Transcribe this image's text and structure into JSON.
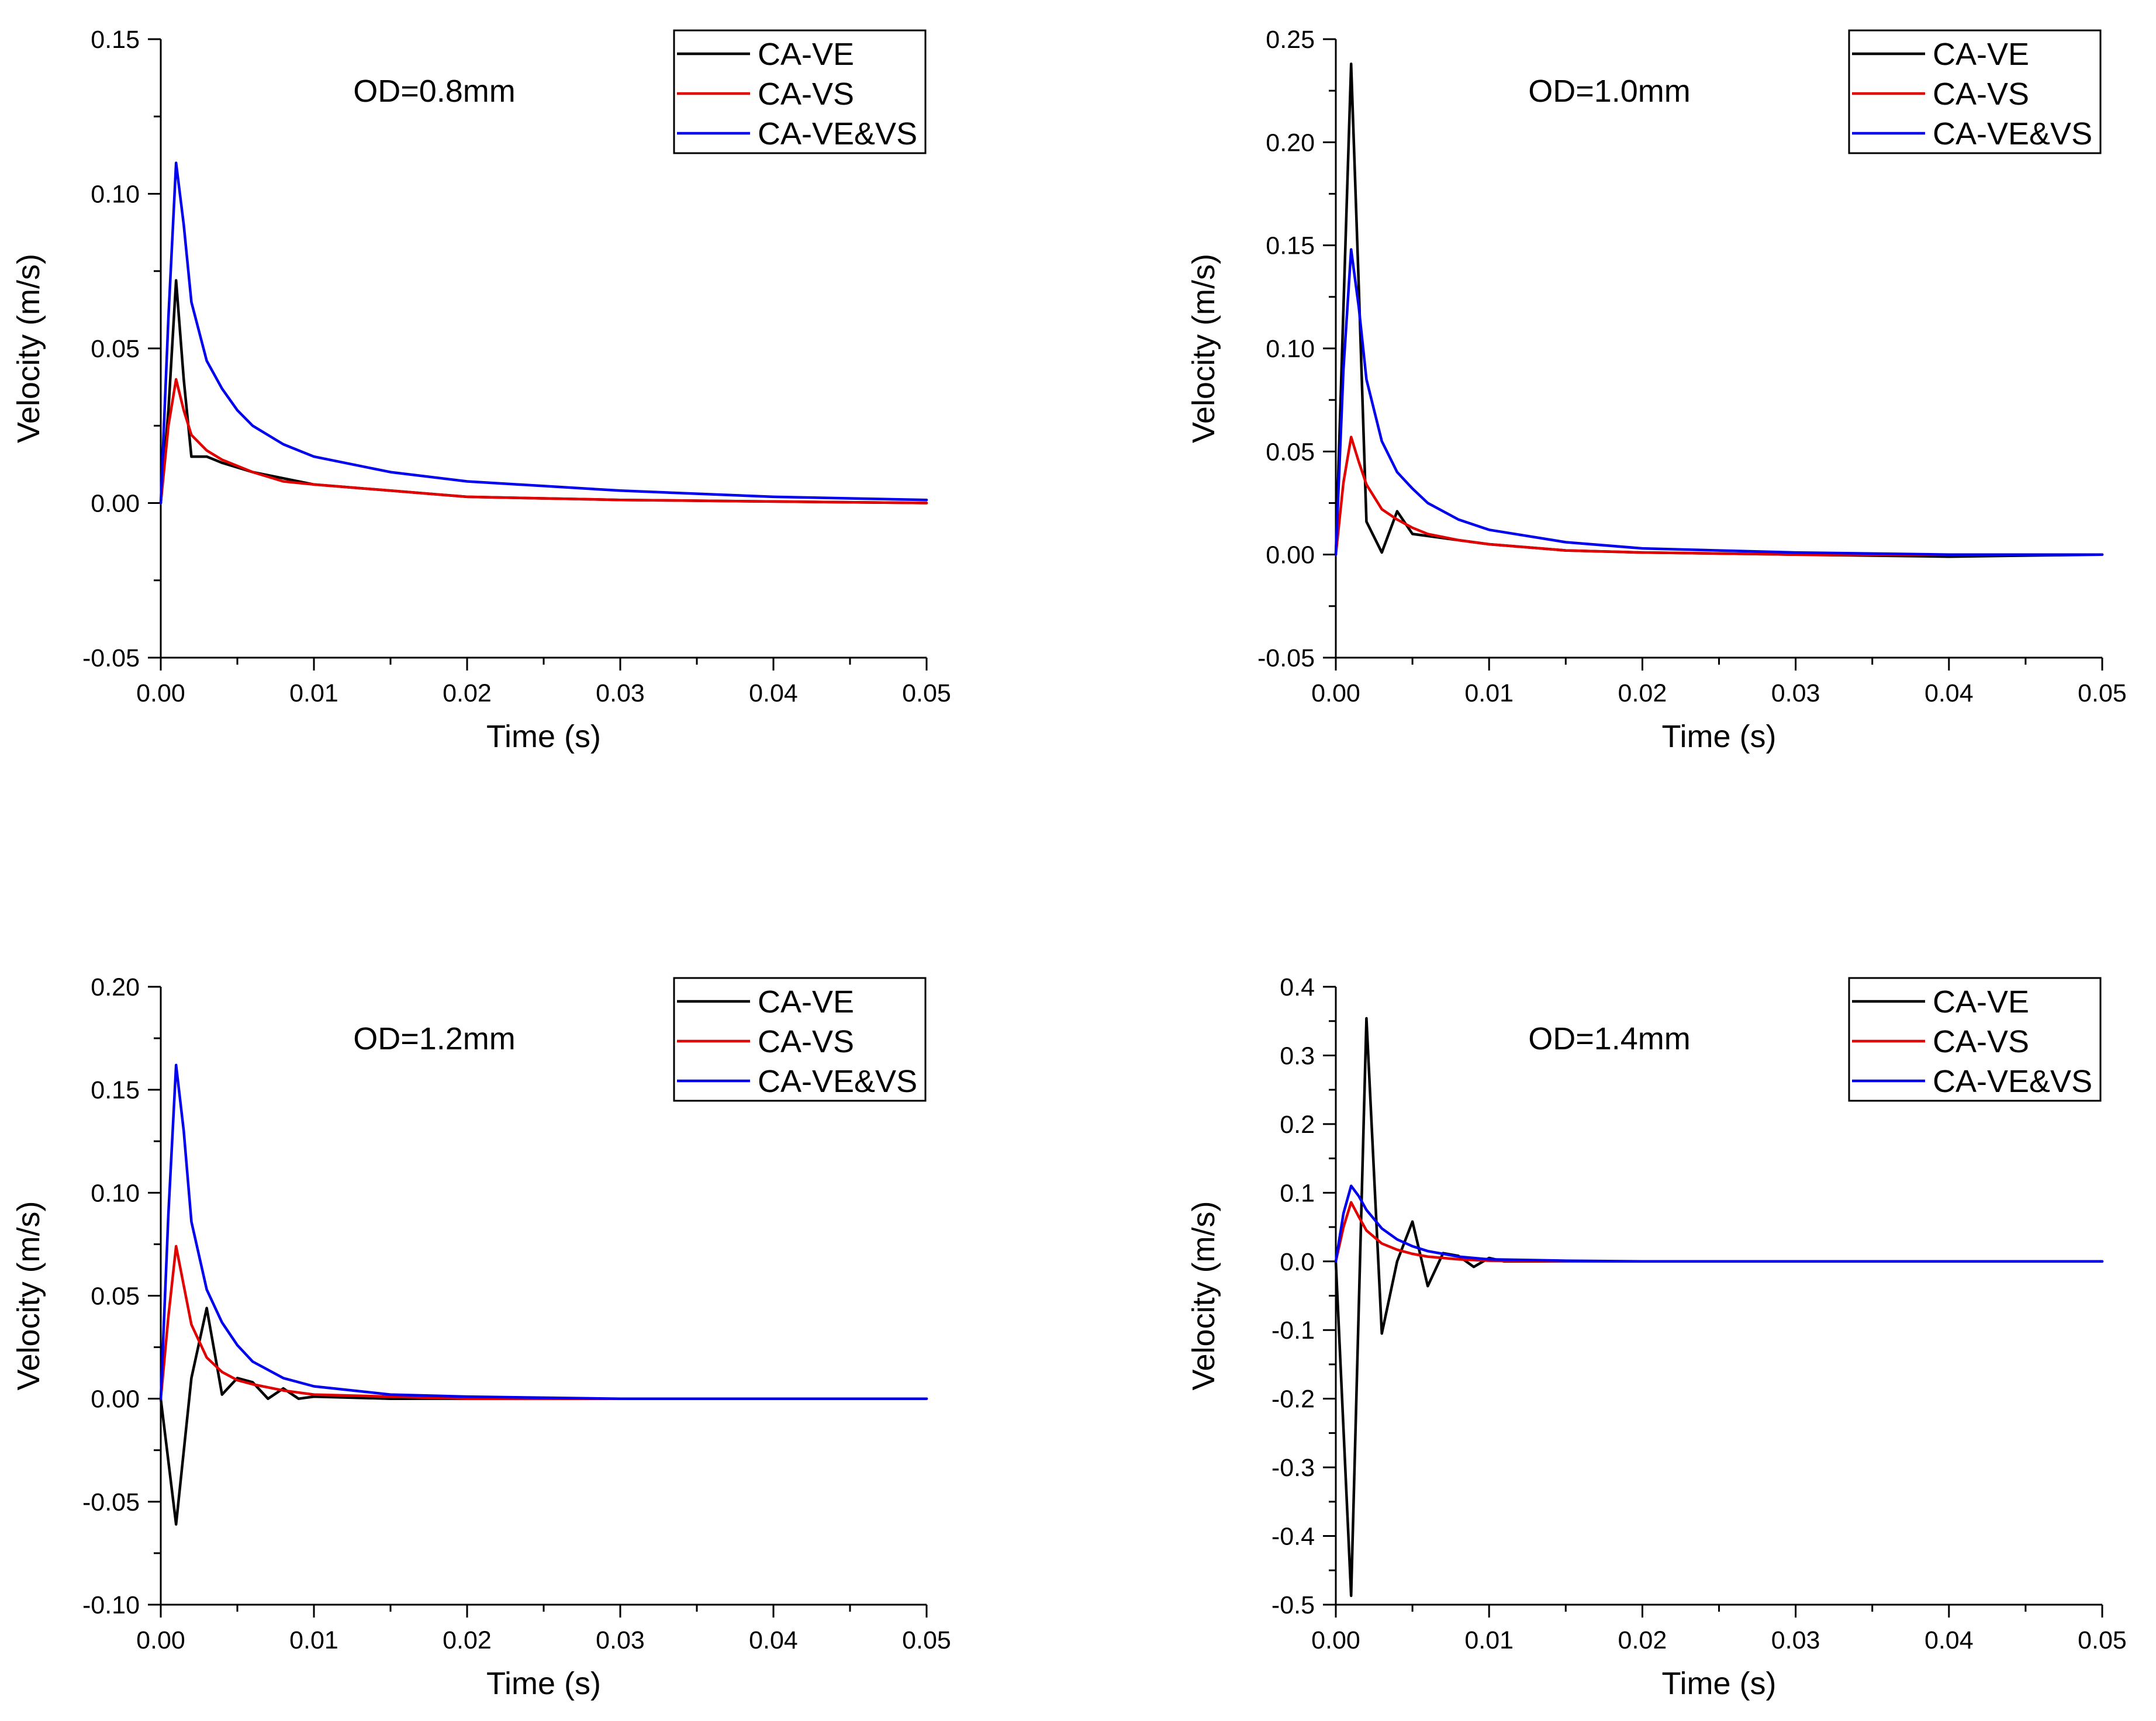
{
  "chart_data": [
    {
      "type": "line",
      "title": "",
      "annotation": "OD=0.8mm",
      "xlabel": "Time (s)",
      "ylabel": "Velocity (m/s)",
      "xlim": [
        0,
        0.05
      ],
      "ylim": [
        -0.05,
        0.15
      ],
      "xticks": [
        0,
        0.01,
        0.02,
        0.03,
        0.04,
        0.05
      ],
      "xtick_labels": [
        "0.00",
        "0.01",
        "0.02",
        "0.03",
        "0.04",
        "0.05"
      ],
      "yticks": [
        -0.05,
        0,
        0.05,
        0.1,
        0.15
      ],
      "ytick_labels": [
        "-0.05",
        "0.00",
        "0.05",
        "0.10",
        "0.15"
      ],
      "legend_position": "top-right",
      "series": [
        {
          "name": "CA-VE",
          "color": "#000000",
          "x": [
            0,
            0.0005,
            0.001,
            0.0015,
            0.002,
            0.003,
            0.004,
            0.006,
            0.008,
            0.01,
            0.015,
            0.02,
            0.03,
            0.04,
            0.05
          ],
          "y": [
            0,
            0.03,
            0.072,
            0.04,
            0.015,
            0.015,
            0.013,
            0.01,
            0.008,
            0.006,
            0.004,
            0.002,
            0.001,
            0.0005,
            0
          ]
        },
        {
          "name": "CA-VS",
          "color": "#e00000",
          "x": [
            0,
            0.0005,
            0.001,
            0.0015,
            0.002,
            0.003,
            0.004,
            0.006,
            0.008,
            0.01,
            0.015,
            0.02,
            0.03,
            0.04,
            0.05
          ],
          "y": [
            0,
            0.025,
            0.04,
            0.03,
            0.022,
            0.017,
            0.014,
            0.01,
            0.007,
            0.006,
            0.004,
            0.002,
            0.001,
            0.0005,
            0
          ]
        },
        {
          "name": "CA-VE&VS",
          "color": "#0000ee",
          "x": [
            0,
            0.0005,
            0.001,
            0.0015,
            0.002,
            0.003,
            0.004,
            0.005,
            0.006,
            0.008,
            0.01,
            0.015,
            0.02,
            0.03,
            0.04,
            0.05
          ],
          "y": [
            0,
            0.06,
            0.11,
            0.09,
            0.065,
            0.046,
            0.037,
            0.03,
            0.025,
            0.019,
            0.015,
            0.01,
            0.007,
            0.004,
            0.002,
            0.001
          ]
        }
      ]
    },
    {
      "type": "line",
      "title": "",
      "annotation": "OD=1.0mm",
      "xlabel": "Time (s)",
      "ylabel": "Velocity (m/s)",
      "xlim": [
        0,
        0.05
      ],
      "ylim": [
        -0.05,
        0.25
      ],
      "xticks": [
        0,
        0.01,
        0.02,
        0.03,
        0.04,
        0.05
      ],
      "xtick_labels": [
        "0.00",
        "0.01",
        "0.02",
        "0.03",
        "0.04",
        "0.05"
      ],
      "yticks": [
        -0.05,
        0,
        0.05,
        0.1,
        0.15,
        0.2,
        0.25
      ],
      "ytick_labels": [
        "-0.05",
        "0.00",
        "0.05",
        "0.10",
        "0.15",
        "0.20",
        "0.25"
      ],
      "legend_position": "top-right",
      "series": [
        {
          "name": "CA-VE",
          "color": "#000000",
          "x": [
            0,
            0.0005,
            0.001,
            0.0015,
            0.002,
            0.003,
            0.004,
            0.005,
            0.006,
            0.008,
            0.01,
            0.015,
            0.02,
            0.03,
            0.04,
            0.05
          ],
          "y": [
            0,
            0.12,
            0.238,
            0.13,
            0.016,
            0.001,
            0.021,
            0.01,
            0.009,
            0.007,
            0.005,
            0.002,
            0.001,
            0,
            -0.001,
            0
          ]
        },
        {
          "name": "CA-VS",
          "color": "#e00000",
          "x": [
            0,
            0.0005,
            0.001,
            0.0015,
            0.002,
            0.003,
            0.004,
            0.005,
            0.006,
            0.008,
            0.01,
            0.015,
            0.02,
            0.03,
            0.04,
            0.05
          ],
          "y": [
            0,
            0.035,
            0.057,
            0.045,
            0.034,
            0.022,
            0.017,
            0.013,
            0.01,
            0.007,
            0.005,
            0.002,
            0.001,
            0,
            0,
            0
          ]
        },
        {
          "name": "CA-VE&VS",
          "color": "#0000ee",
          "x": [
            0,
            0.0005,
            0.001,
            0.0015,
            0.002,
            0.003,
            0.004,
            0.005,
            0.006,
            0.008,
            0.01,
            0.015,
            0.02,
            0.03,
            0.04,
            0.05
          ],
          "y": [
            0,
            0.09,
            0.148,
            0.12,
            0.085,
            0.055,
            0.04,
            0.032,
            0.025,
            0.017,
            0.012,
            0.006,
            0.003,
            0.001,
            0,
            0
          ]
        }
      ]
    },
    {
      "type": "line",
      "title": "",
      "annotation": "OD=1.2mm",
      "xlabel": "Time (s)",
      "ylabel": "Velocity (m/s)",
      "xlim": [
        0,
        0.05
      ],
      "ylim": [
        -0.1,
        0.2
      ],
      "xticks": [
        0,
        0.01,
        0.02,
        0.03,
        0.04,
        0.05
      ],
      "xtick_labels": [
        "0.00",
        "0.01",
        "0.02",
        "0.03",
        "0.04",
        "0.05"
      ],
      "yticks": [
        -0.1,
        -0.05,
        0,
        0.05,
        0.1,
        0.15,
        0.2
      ],
      "ytick_labels": [
        "-0.10",
        "-0.05",
        "0.00",
        "0.05",
        "0.10",
        "0.15",
        "0.20"
      ],
      "legend_position": "top-right",
      "series": [
        {
          "name": "CA-VE",
          "color": "#000000",
          "x": [
            0,
            0.001,
            0.002,
            0.003,
            0.004,
            0.005,
            0.006,
            0.007,
            0.008,
            0.009,
            0.01,
            0.015,
            0.02,
            0.03,
            0.04,
            0.05
          ],
          "y": [
            0,
            -0.061,
            0.01,
            0.044,
            0.002,
            0.01,
            0.008,
            0,
            0.005,
            0,
            0.001,
            0,
            0,
            0,
            0,
            0
          ]
        },
        {
          "name": "CA-VS",
          "color": "#e00000",
          "x": [
            0,
            0.0005,
            0.001,
            0.0015,
            0.002,
            0.003,
            0.004,
            0.005,
            0.006,
            0.008,
            0.01,
            0.015,
            0.02,
            0.03,
            0.04,
            0.05
          ],
          "y": [
            0,
            0.04,
            0.074,
            0.055,
            0.036,
            0.02,
            0.013,
            0.009,
            0.007,
            0.004,
            0.002,
            0.001,
            0,
            0,
            0,
            0
          ]
        },
        {
          "name": "CA-VE&VS",
          "color": "#0000ee",
          "x": [
            0,
            0.0005,
            0.001,
            0.0015,
            0.002,
            0.003,
            0.004,
            0.005,
            0.006,
            0.008,
            0.01,
            0.015,
            0.02,
            0.03,
            0.04,
            0.05
          ],
          "y": [
            0,
            0.09,
            0.162,
            0.13,
            0.086,
            0.053,
            0.037,
            0.026,
            0.018,
            0.01,
            0.006,
            0.002,
            0.001,
            0,
            0,
            0
          ]
        }
      ]
    },
    {
      "type": "line",
      "title": "",
      "annotation": "OD=1.4mm",
      "xlabel": "Time (s)",
      "ylabel": "Velocity (m/s)",
      "xlim": [
        0,
        0.05
      ],
      "ylim": [
        -0.5,
        0.4
      ],
      "xticks": [
        0,
        0.01,
        0.02,
        0.03,
        0.04,
        0.05
      ],
      "xtick_labels": [
        "0.00",
        "0.01",
        "0.02",
        "0.03",
        "0.04",
        "0.05"
      ],
      "yticks": [
        -0.5,
        -0.4,
        -0.3,
        -0.2,
        -0.1,
        0,
        0.1,
        0.2,
        0.3,
        0.4
      ],
      "ytick_labels": [
        "-0.5",
        "-0.4",
        "-0.3",
        "-0.2",
        "-0.1",
        "0.0",
        "0.1",
        "0.2",
        "0.3",
        "0.4"
      ],
      "legend_position": "top-right",
      "series": [
        {
          "name": "CA-VE",
          "color": "#000000",
          "x": [
            0,
            0.001,
            0.002,
            0.003,
            0.004,
            0.005,
            0.006,
            0.007,
            0.008,
            0.009,
            0.01,
            0.011,
            0.012,
            0.015,
            0.02,
            0.03,
            0.04,
            0.05
          ],
          "y": [
            0,
            -0.487,
            0.354,
            -0.105,
            0,
            0.058,
            -0.036,
            0.012,
            0.008,
            -0.008,
            0.005,
            0,
            0,
            0,
            0,
            0,
            0,
            0
          ]
        },
        {
          "name": "CA-VS",
          "color": "#e00000",
          "x": [
            0,
            0.0005,
            0.001,
            0.0015,
            0.002,
            0.003,
            0.004,
            0.005,
            0.006,
            0.008,
            0.01,
            0.015,
            0.02,
            0.03,
            0.04,
            0.05
          ],
          "y": [
            0,
            0.05,
            0.086,
            0.065,
            0.045,
            0.026,
            0.017,
            0.011,
            0.007,
            0.003,
            0.001,
            0,
            0,
            0,
            0,
            0
          ]
        },
        {
          "name": "CA-VE&VS",
          "color": "#0000ee",
          "x": [
            0,
            0.0005,
            0.001,
            0.0015,
            0.002,
            0.003,
            0.004,
            0.005,
            0.006,
            0.008,
            0.01,
            0.015,
            0.02,
            0.03,
            0.04,
            0.05
          ],
          "y": [
            0,
            0.07,
            0.11,
            0.095,
            0.075,
            0.048,
            0.032,
            0.022,
            0.015,
            0.007,
            0.003,
            0.001,
            0,
            0,
            0,
            0
          ]
        }
      ]
    }
  ]
}
